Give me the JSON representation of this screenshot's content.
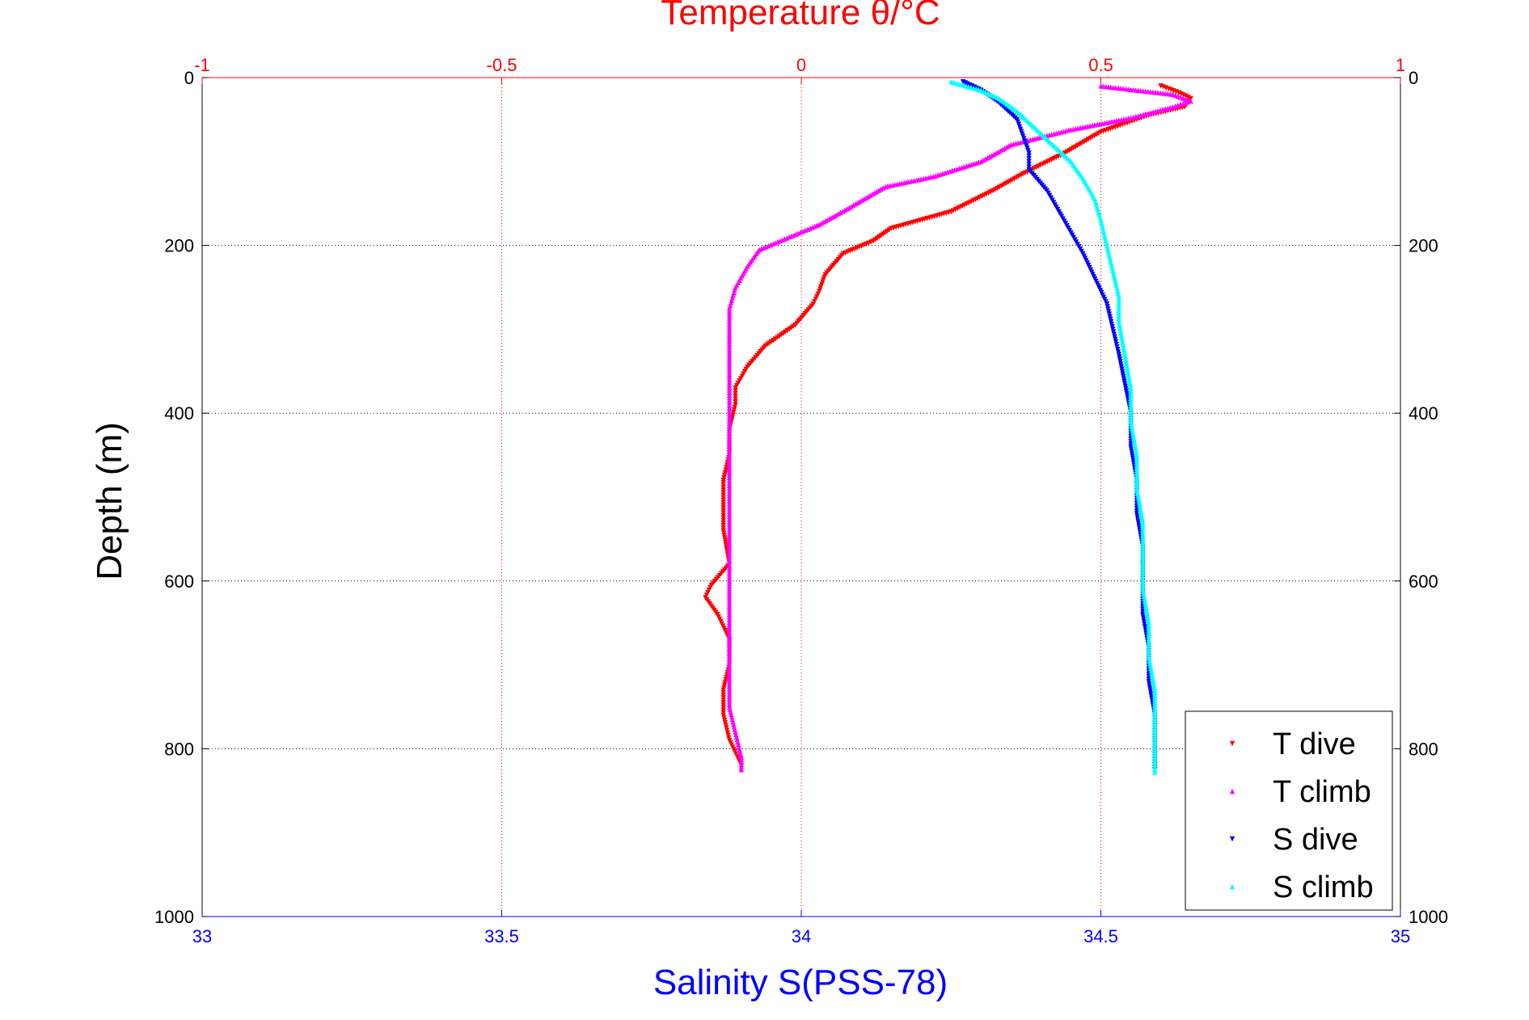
{
  "chart_data": {
    "type": "scatter",
    "title": "Temperature θ/°C",
    "xlabel": "Salinity S(PSS-78)",
    "ylabel": "Depth (m)",
    "top_axis": {
      "label": "Temperature θ/°C",
      "range": [
        -1,
        1
      ],
      "ticks": [
        "-1",
        "-0.5",
        "0",
        "0.5",
        "1"
      ],
      "color": "#ff0000"
    },
    "bottom_axis": {
      "label": "Salinity S(PSS-78)",
      "range": [
        33,
        35
      ],
      "ticks": [
        "33",
        "33.5",
        "34",
        "34.5",
        "35"
      ],
      "color": "#0000ff"
    },
    "y_axis": {
      "label": "Depth (m)",
      "range": [
        0,
        1000
      ],
      "reversed": true,
      "ticks": [
        "0",
        "200",
        "400",
        "600",
        "800",
        "1000"
      ]
    },
    "grid": true,
    "legend_position": "bottom-right",
    "series": [
      {
        "name": "T dive",
        "axis": "top",
        "color": "#ff0000",
        "marker": "triangle-down",
        "points": [
          [
            0.6,
            10
          ],
          [
            0.63,
            18
          ],
          [
            0.65,
            25
          ],
          [
            0.64,
            35
          ],
          [
            0.58,
            45
          ],
          [
            0.5,
            65
          ],
          [
            0.44,
            90
          ],
          [
            0.37,
            115
          ],
          [
            0.32,
            135
          ],
          [
            0.25,
            160
          ],
          [
            0.15,
            180
          ],
          [
            0.12,
            195
          ],
          [
            0.07,
            210
          ],
          [
            0.04,
            235
          ],
          [
            0.03,
            255
          ],
          [
            0.02,
            270
          ],
          [
            -0.01,
            295
          ],
          [
            -0.06,
            320
          ],
          [
            -0.09,
            345
          ],
          [
            -0.11,
            370
          ],
          [
            -0.11,
            390
          ],
          [
            -0.12,
            420
          ],
          [
            -0.12,
            450
          ],
          [
            -0.13,
            480
          ],
          [
            -0.13,
            510
          ],
          [
            -0.13,
            540
          ],
          [
            -0.12,
            580
          ],
          [
            -0.15,
            605
          ],
          [
            -0.16,
            620
          ],
          [
            -0.14,
            640
          ],
          [
            -0.12,
            670
          ],
          [
            -0.12,
            700
          ],
          [
            -0.13,
            730
          ],
          [
            -0.13,
            760
          ],
          [
            -0.12,
            790
          ],
          [
            -0.1,
            820
          ]
        ]
      },
      {
        "name": "T climb",
        "axis": "top",
        "color": "#ff00ff",
        "marker": "triangle-up",
        "points": [
          [
            0.5,
            10
          ],
          [
            0.62,
            20
          ],
          [
            0.65,
            28
          ],
          [
            0.62,
            35
          ],
          [
            0.55,
            48
          ],
          [
            0.45,
            62
          ],
          [
            0.35,
            80
          ],
          [
            0.3,
            100
          ],
          [
            0.22,
            118
          ],
          [
            0.14,
            130
          ],
          [
            0.08,
            155
          ],
          [
            0.03,
            175
          ],
          [
            -0.02,
            190
          ],
          [
            -0.07,
            205
          ],
          [
            -0.09,
            225
          ],
          [
            -0.11,
            250
          ],
          [
            -0.12,
            275
          ],
          [
            -0.12,
            300
          ],
          [
            -0.12,
            330
          ],
          [
            -0.12,
            360
          ],
          [
            -0.12,
            400
          ],
          [
            -0.12,
            440
          ],
          [
            -0.12,
            480
          ],
          [
            -0.12,
            520
          ],
          [
            -0.12,
            560
          ],
          [
            -0.12,
            600
          ],
          [
            -0.12,
            640
          ],
          [
            -0.12,
            680
          ],
          [
            -0.12,
            720
          ],
          [
            -0.12,
            750
          ],
          [
            -0.11,
            780
          ],
          [
            -0.1,
            810
          ],
          [
            -0.1,
            825
          ]
        ]
      },
      {
        "name": "S dive",
        "axis": "bottom",
        "color": "#0000ff",
        "marker": "triangle-down",
        "points": [
          [
            34.27,
            5
          ],
          [
            34.3,
            15
          ],
          [
            34.33,
            30
          ],
          [
            34.36,
            50
          ],
          [
            34.37,
            70
          ],
          [
            34.38,
            90
          ],
          [
            34.38,
            110
          ],
          [
            34.41,
            135
          ],
          [
            34.43,
            160
          ],
          [
            34.45,
            185
          ],
          [
            34.47,
            210
          ],
          [
            34.49,
            240
          ],
          [
            34.51,
            270
          ],
          [
            34.52,
            300
          ],
          [
            34.53,
            330
          ],
          [
            34.54,
            365
          ],
          [
            34.55,
            400
          ],
          [
            34.55,
            440
          ],
          [
            34.56,
            480
          ],
          [
            34.56,
            520
          ],
          [
            34.57,
            560
          ],
          [
            34.57,
            600
          ],
          [
            34.57,
            640
          ],
          [
            34.58,
            680
          ],
          [
            34.58,
            720
          ],
          [
            34.59,
            760
          ],
          [
            34.59,
            800
          ],
          [
            34.59,
            825
          ]
        ]
      },
      {
        "name": "S climb",
        "axis": "bottom",
        "color": "#00ffff",
        "marker": "triangle-up",
        "points": [
          [
            34.25,
            5
          ],
          [
            34.3,
            15
          ],
          [
            34.33,
            25
          ],
          [
            34.36,
            40
          ],
          [
            34.39,
            60
          ],
          [
            34.42,
            80
          ],
          [
            34.45,
            100
          ],
          [
            34.47,
            120
          ],
          [
            34.49,
            145
          ],
          [
            34.5,
            170
          ],
          [
            34.51,
            200
          ],
          [
            34.52,
            230
          ],
          [
            34.53,
            260
          ],
          [
            34.53,
            290
          ],
          [
            34.54,
            330
          ],
          [
            34.55,
            370
          ],
          [
            34.55,
            410
          ],
          [
            34.56,
            450
          ],
          [
            34.56,
            490
          ],
          [
            34.57,
            530
          ],
          [
            34.57,
            570
          ],
          [
            34.57,
            610
          ],
          [
            34.58,
            650
          ],
          [
            34.58,
            690
          ],
          [
            34.59,
            730
          ],
          [
            34.59,
            770
          ],
          [
            34.59,
            810
          ],
          [
            34.59,
            828
          ]
        ]
      }
    ]
  }
}
